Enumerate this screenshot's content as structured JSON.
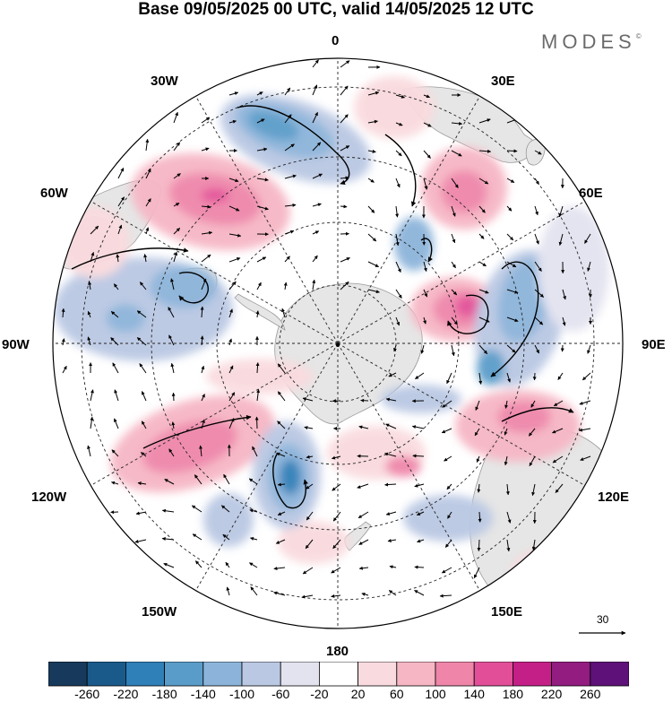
{
  "title": "Base 09/05/2025 00 UTC, valid 14/05/2025 12 UTC",
  "brand": "MODES",
  "brand_mark": "©",
  "map": {
    "projection": "south-polar-stereographic",
    "longitude_labels": {
      "top": "0",
      "top_right": "30E",
      "upper_right": "60E",
      "right": "90E",
      "lower_right": "120E",
      "bottom_right": "150E",
      "bottom": "180",
      "bottom_left": "150W",
      "lower_left": "120W",
      "left": "90W",
      "upper_left": "60W",
      "top_left": "30W"
    },
    "reference_vector": "30",
    "colors": {
      "land": "#e6e6e6",
      "ocean": "#ffffff",
      "grid": "#222222"
    }
  },
  "colorbar": {
    "ticks": [
      "-260",
      "-220",
      "-180",
      "-140",
      "-100",
      "-60",
      "-20",
      "20",
      "60",
      "100",
      "140",
      "180",
      "220",
      "260"
    ],
    "colors": [
      "#173a5c",
      "#1a5a8a",
      "#2f7fb8",
      "#5a9cc9",
      "#8cb4da",
      "#bac8e3",
      "#e3e3f0",
      "#ffffff",
      "#f9dade",
      "#f6b6c4",
      "#ef86aa",
      "#e24f98",
      "#c41f87",
      "#921c80",
      "#5e1178"
    ]
  }
}
